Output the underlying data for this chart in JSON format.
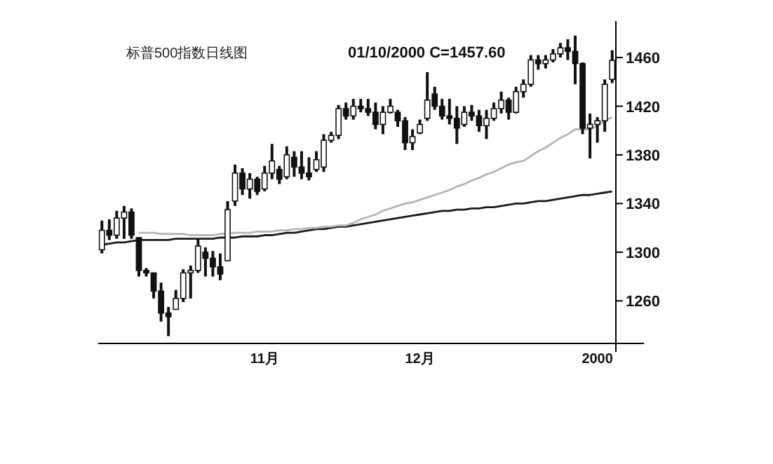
{
  "chart_data": {
    "type": "candlestick",
    "title": "标普500指数日线图",
    "subtitle": "01/10/2000  C=1457.60",
    "categories": [
      null,
      null,
      null,
      null,
      null,
      null,
      null,
      null,
      null,
      null,
      null,
      null,
      null,
      null,
      null,
      null,
      null,
      null,
      null,
      null,
      null,
      null,
      "11月",
      null,
      null,
      null,
      null,
      null,
      null,
      null,
      null,
      null,
      null,
      null,
      null,
      null,
      null,
      null,
      null,
      null,
      null,
      null,
      null,
      "12月",
      null,
      null,
      null,
      null,
      null,
      null,
      null,
      null,
      null,
      null,
      null,
      null,
      null,
      null,
      null,
      null,
      null,
      null,
      null,
      null,
      null,
      null,
      null,
      "2000",
      null,
      null
    ],
    "ohlc": [
      [
        1302,
        1326,
        1299,
        1318
      ],
      [
        1318,
        1327,
        1310,
        1314
      ],
      [
        1314,
        1334,
        1311,
        1328
      ],
      [
        1328,
        1338,
        1311,
        1333
      ],
      [
        1333,
        1336,
        1311,
        1314
      ],
      [
        1312,
        1312,
        1280,
        1285
      ],
      [
        1285,
        1287,
        1280,
        1283
      ],
      [
        1283,
        1283,
        1262,
        1268
      ],
      [
        1268,
        1275,
        1243,
        1250
      ],
      [
        1250,
        1255,
        1231,
        1247
      ],
      [
        1253,
        1269,
        1253,
        1262
      ],
      [
        1262,
        1286,
        1259,
        1283
      ],
      [
        1283,
        1289,
        1262,
        1285
      ],
      [
        1285,
        1311,
        1283,
        1305
      ],
      [
        1300,
        1304,
        1280,
        1295
      ],
      [
        1295,
        1301,
        1280,
        1288
      ],
      [
        1288,
        1299,
        1277,
        1282
      ],
      [
        1293,
        1342,
        1293,
        1335
      ],
      [
        1342,
        1372,
        1338,
        1365
      ],
      [
        1365,
        1369,
        1347,
        1352
      ],
      [
        1352,
        1365,
        1344,
        1360
      ],
      [
        1360,
        1362,
        1347,
        1350
      ],
      [
        1352,
        1371,
        1350,
        1365
      ],
      [
        1365,
        1389,
        1360,
        1375
      ],
      [
        1368,
        1371,
        1356,
        1360
      ],
      [
        1362,
        1387,
        1360,
        1380
      ],
      [
        1378,
        1383,
        1362,
        1370
      ],
      [
        1370,
        1383,
        1360,
        1365
      ],
      [
        1365,
        1378,
        1359,
        1362
      ],
      [
        1368,
        1383,
        1366,
        1376
      ],
      [
        1370,
        1397,
        1366,
        1392
      ],
      [
        1392,
        1399,
        1390,
        1396
      ],
      [
        1396,
        1421,
        1393,
        1418
      ],
      [
        1418,
        1423,
        1409,
        1412
      ],
      [
        1412,
        1426,
        1409,
        1420
      ],
      [
        1420,
        1426,
        1415,
        1418
      ],
      [
        1418,
        1426,
        1412,
        1415
      ],
      [
        1415,
        1423,
        1401,
        1405
      ],
      [
        1405,
        1420,
        1397,
        1415
      ],
      [
        1415,
        1426,
        1414,
        1420
      ],
      [
        1415,
        1417,
        1403,
        1408
      ],
      [
        1408,
        1411,
        1384,
        1390
      ],
      [
        1390,
        1401,
        1384,
        1395
      ],
      [
        1398,
        1409,
        1397,
        1405
      ],
      [
        1410,
        1448,
        1408,
        1425
      ],
      [
        1430,
        1436,
        1417,
        1420
      ],
      [
        1420,
        1426,
        1409,
        1412
      ],
      [
        1412,
        1426,
        1405,
        1410
      ],
      [
        1410,
        1420,
        1389,
        1402
      ],
      [
        1405,
        1420,
        1403,
        1415
      ],
      [
        1415,
        1421,
        1408,
        1412
      ],
      [
        1412,
        1417,
        1399,
        1404
      ],
      [
        1404,
        1417,
        1393,
        1410
      ],
      [
        1410,
        1423,
        1408,
        1418
      ],
      [
        1418,
        1432,
        1414,
        1425
      ],
      [
        1425,
        1427,
        1409,
        1415
      ],
      [
        1415,
        1436,
        1414,
        1432
      ],
      [
        1432,
        1442,
        1427,
        1438
      ],
      [
        1438,
        1462,
        1436,
        1458
      ],
      [
        1458,
        1462,
        1450,
        1455
      ],
      [
        1455,
        1462,
        1451,
        1458
      ],
      [
        1458,
        1467,
        1456,
        1463
      ],
      [
        1463,
        1472,
        1460,
        1468
      ],
      [
        1468,
        1475,
        1458,
        1465
      ],
      [
        1465,
        1478,
        1438,
        1455
      ],
      [
        1455,
        1456,
        1397,
        1402
      ],
      [
        1402,
        1414,
        1377,
        1405
      ],
      [
        1405,
        1411,
        1390,
        1408
      ],
      [
        1408,
        1442,
        1399,
        1438
      ],
      [
        1442,
        1466,
        1439,
        1457.6
      ]
    ],
    "color": "#111111",
    "series": [
      {
        "type": "line",
        "color": "#1a1a1a",
        "values": [
          1306,
          1307,
          1308,
          1308,
          1309,
          1310,
          1310,
          1310,
          1310,
          1310,
          1311,
          1311,
          1311,
          1311,
          1311,
          1311,
          1312,
          1312,
          1312,
          1313,
          1313,
          1313,
          1314,
          1314,
          1315,
          1316,
          1316,
          1317,
          1318,
          1319,
          1319,
          1320,
          1321,
          1321,
          1322,
          1323,
          1324,
          1325,
          1326,
          1327,
          1328,
          1329,
          1330,
          1331,
          1332,
          1333,
          1334,
          1334,
          1335,
          1335,
          1336,
          1336,
          1337,
          1337,
          1338,
          1339,
          1340,
          1340,
          1341,
          1342,
          1342,
          1343,
          1344,
          1345,
          1346,
          1347,
          1347,
          1348,
          1349,
          1350
        ]
      },
      {
        "type": "line",
        "color": "#b5b5b5",
        "values": [
          null,
          null,
          null,
          null,
          null,
          1316,
          1316,
          1316,
          1315,
          1315,
          1315,
          1315,
          1314,
          1314,
          1314,
          1314,
          1315,
          1315,
          1316,
          1316,
          1316,
          1317,
          1317,
          1317,
          1318,
          1318,
          1319,
          1319,
          1320,
          1320,
          1321,
          1321,
          1322,
          1322,
          1324,
          1327,
          1329,
          1331,
          1334,
          1336,
          1338,
          1340,
          1341,
          1343,
          1345,
          1347,
          1349,
          1351,
          1354,
          1356,
          1359,
          1361,
          1364,
          1366,
          1369,
          1372,
          1374,
          1375,
          1379,
          1383,
          1386,
          1390,
          1394,
          1397,
          1401,
          1401,
          1401,
          1404,
          1408,
          1411
        ]
      }
    ],
    "ylim": [
      1225,
      1490
    ],
    "yticks": [
      1260,
      1300,
      1340,
      1380,
      1420,
      1460
    ]
  }
}
